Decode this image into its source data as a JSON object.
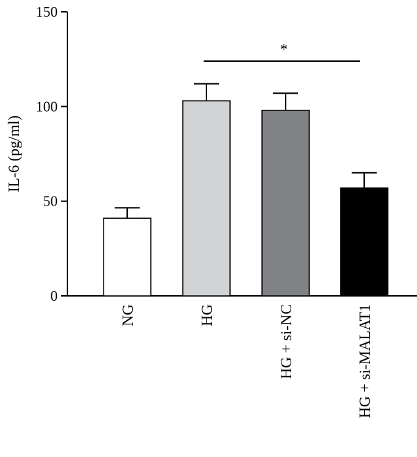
{
  "chart_data": {
    "type": "bar",
    "ylabel": "IL-6 (pg/ml)",
    "ylim": [
      0,
      150
    ],
    "yticks": [
      0,
      50,
      100,
      150
    ],
    "categories": [
      "NG",
      "HG",
      "HG + si-NC",
      "HG + si-MALAT1"
    ],
    "values": [
      41,
      103,
      98,
      57
    ],
    "errors": [
      5.5,
      9,
      9,
      8
    ],
    "colors": [
      "#ffffff",
      "#d1d3d4",
      "#808285",
      "#000000"
    ],
    "significance": {
      "label": "*",
      "from_category": "HG",
      "to_category": "HG + si-MALAT1"
    },
    "grid": false,
    "legend": "none"
  }
}
